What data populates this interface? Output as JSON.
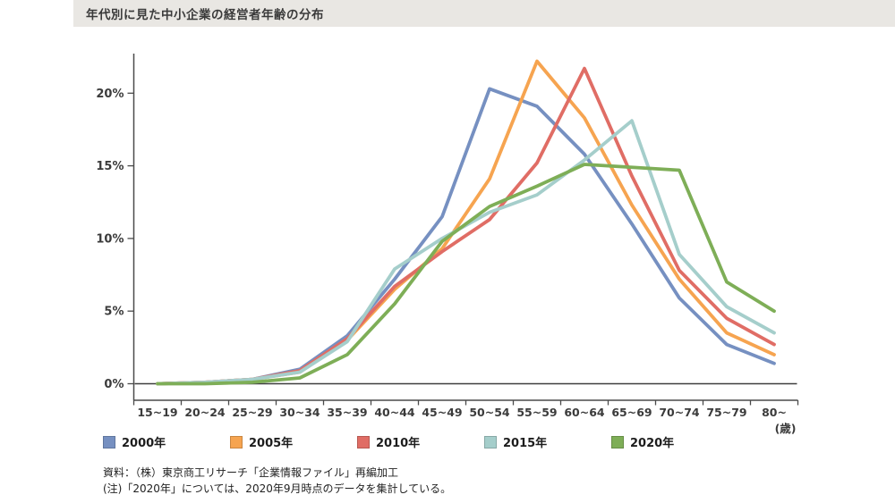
{
  "title": "年代別に見た中小企業の経営者年齢の分布",
  "chart_data": {
    "type": "line",
    "categories": [
      "15~19",
      "20~24",
      "25~29",
      "30~34",
      "35~39",
      "40~44",
      "45~49",
      "50~54",
      "55~59",
      "60~64",
      "65~69",
      "70~74",
      "75~79",
      "80~"
    ],
    "unit_label": "(歳)",
    "y_ticks": [
      0,
      5,
      10,
      15,
      20
    ],
    "y_tick_labels": [
      "0%",
      "5%",
      "10%",
      "15%",
      "20%"
    ],
    "ylim": [
      0,
      22.8
    ],
    "grid": false,
    "legend_position": "bottom",
    "series": [
      {
        "name": "2000年",
        "color": "#7690c1",
        "values": [
          0,
          0.1,
          0.3,
          1.0,
          3.3,
          7.2,
          11.5,
          20.3,
          19.1,
          15.8,
          11.0,
          5.9,
          2.7,
          1.4
        ]
      },
      {
        "name": "2005年",
        "color": "#f6a450",
        "values": [
          0,
          0.1,
          0.3,
          0.8,
          3.0,
          6.5,
          9.3,
          14.1,
          22.2,
          18.3,
          12.3,
          7.2,
          3.5,
          2.0
        ]
      },
      {
        "name": "2010年",
        "color": "#e06d65",
        "values": [
          0,
          0.1,
          0.3,
          0.9,
          3.1,
          6.7,
          9.1,
          11.3,
          15.2,
          21.7,
          14.3,
          7.8,
          4.5,
          2.7
        ]
      },
      {
        "name": "2015年",
        "color": "#a5cecb",
        "values": [
          0,
          0.1,
          0.3,
          0.8,
          2.9,
          7.9,
          10.0,
          11.8,
          13.0,
          15.4,
          18.1,
          8.9,
          5.3,
          3.5
        ]
      },
      {
        "name": "2020年",
        "color": "#7eae57",
        "values": [
          0,
          0.0,
          0.1,
          0.4,
          2.0,
          5.5,
          9.8,
          12.2,
          13.6,
          15.1,
          14.9,
          14.7,
          7.0,
          5.0
        ]
      }
    ]
  },
  "source": {
    "line1": "資料：（株）東京商工リサーチ「企業情報ファイル」再編加工",
    "line2": "(注)「2020年」については、2020年9月時点のデータを集計している。"
  }
}
